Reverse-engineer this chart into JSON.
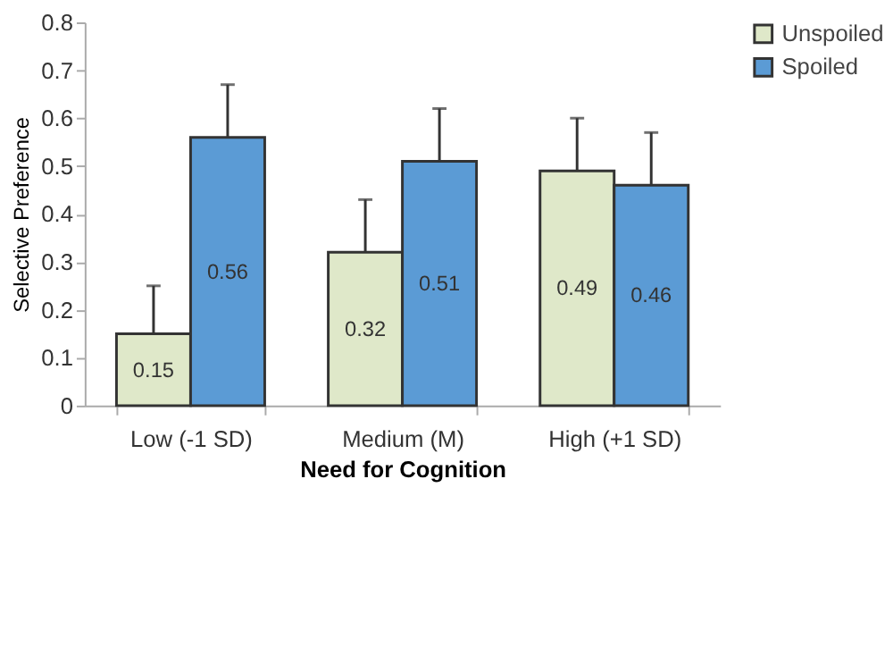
{
  "chart_data": {
    "type": "bar",
    "xlabel": "Need for Cognition",
    "ylabel": "Selective Preference",
    "categories": [
      "Low (-1 SD)",
      "Medium (M)",
      "High (+1 SD)"
    ],
    "series": [
      {
        "name": "Unspoiled",
        "color": "#dfe8c9",
        "values": [
          0.15,
          0.32,
          0.49
        ],
        "errors": [
          [
            0.15,
            0.25
          ],
          [
            0.32,
            0.43
          ],
          [
            0.49,
            0.6
          ]
        ]
      },
      {
        "name": "Spoiled",
        "color": "#5b9bd5",
        "values": [
          0.56,
          0.51,
          0.46
        ],
        "errors": [
          [
            0.56,
            0.67
          ],
          [
            0.51,
            0.62
          ],
          [
            0.46,
            0.57
          ]
        ]
      }
    ],
    "ylim": [
      0,
      0.8
    ],
    "yticks": [
      0,
      0.1,
      0.2,
      0.3,
      0.4,
      0.5,
      0.6,
      0.7,
      0.8
    ],
    "data_labels": true,
    "grid": false,
    "legend": "right"
  }
}
